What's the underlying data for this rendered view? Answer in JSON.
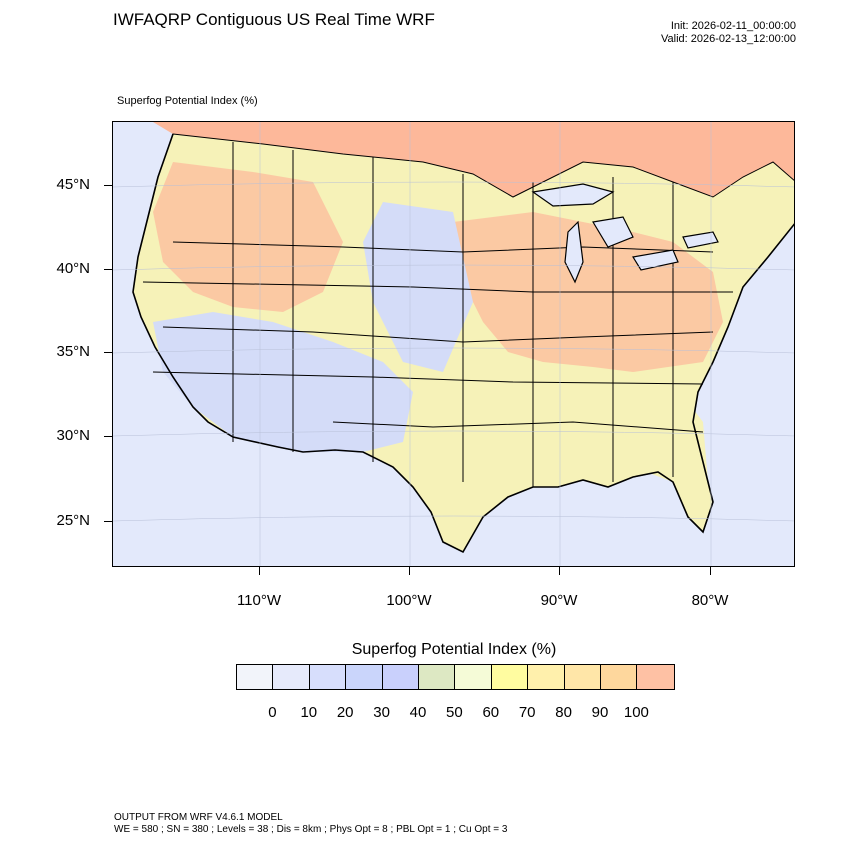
{
  "header": {
    "title": "IWFAQRP Contiguous US Real Time WRF",
    "init": "Init: 2026-02-11_00:00:00",
    "valid": "Valid: 2026-02-13_12:00:00"
  },
  "map": {
    "subtitle": "Superfog Potential Index   (%)",
    "lat_labels": [
      "45°N",
      "40°N",
      "35°N",
      "30°N",
      "25°N"
    ],
    "lon_labels": [
      "110°W",
      "100°W",
      "90°W",
      "80°W"
    ],
    "colors": {
      "ocean": "#e3e9fb",
      "low": "#d4dcf8",
      "mid": "#f6f2b8",
      "high": "#fbc9a3",
      "peak": "#fdb89a",
      "border": "#000000"
    }
  },
  "colorbar": {
    "title": "Superfog Potential Index  (%)",
    "labels": [
      "0",
      "10",
      "20",
      "30",
      "40",
      "50",
      "60",
      "70",
      "80",
      "90",
      "100"
    ],
    "colors": [
      "#f2f4fa",
      "#e6eafb",
      "#d7defc",
      "#cad5fb",
      "#c9d0fc",
      "#dde8c3",
      "#f5fbd7",
      "#fffca0",
      "#fff0ac",
      "#ffe6a8",
      "#fed79d",
      "#fec1a4"
    ]
  },
  "footer": {
    "line1": "OUTPUT FROM WRF V4.6.1 MODEL",
    "line2": "WE = 580 ; SN = 380 ; Levels = 38 ; Dis = 8km ; Phys Opt = 8 ; PBL Opt = 1 ; Cu Opt = 3"
  }
}
